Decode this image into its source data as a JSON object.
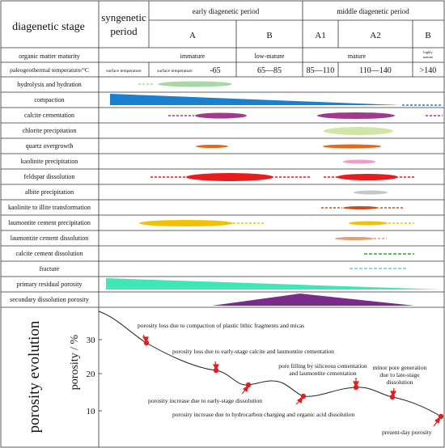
{
  "header": {
    "stage_label": "diagenetic stage",
    "syngenetic_line1": "syngenetic",
    "syngenetic_line2": "period",
    "early_period": "early diagenetic period",
    "middle_period": "middle diagenetic period",
    "sub_A": "A",
    "sub_B": "B",
    "sub_A1": "A1",
    "sub_A2": "A2",
    "sub_B2": "B"
  },
  "maturity": {
    "label": "organic matter maturity",
    "immature": "immature",
    "low_mature": "low-mature",
    "mature": "mature",
    "highly_line1": "highly",
    "highly_line2": "mature"
  },
  "temperature": {
    "label": "paleogeothermal temperature/°C",
    "surface1": "surface temperature",
    "surface2": "surface temperature",
    "v1": "-65",
    "v2": "65—85",
    "v3": "85—110",
    "v4": "110—140",
    "v5": ">140"
  },
  "processes": [
    "hydrolysis and hydration",
    "compaction",
    "calcite cementation",
    "chlorite precipitation",
    "quartz overgrowth",
    "kaolinite precipitation",
    "feldspar dissolution",
    "albite precipitation",
    "kaolinite to illite transformation",
    "laumontite cement precipitation",
    "laumontite cement dissolution",
    "calcite cement dissolution",
    "fracture",
    "primary residual porosity",
    "secondary dissolution porosity"
  ],
  "evolution": {
    "title": "porosity evolution",
    "ylabel": "porosity / %",
    "ticks": [
      "30",
      "20",
      "10"
    ],
    "annotations": [
      "porosity loss due to compaction of plastic lithic fragments and micas",
      "porosity loss due to early-stage calcite and laumontite cementation",
      "pore filling  by siliceous cementation",
      "and laumontite cementation",
      "minor pore generation",
      "due to late-stage",
      "dissolution",
      "porosity increase due to early-stage dissolution",
      "porosity increase due to hydrocarbon charging and organic acid dissolution",
      "present-day porosity"
    ]
  },
  "colors": {
    "grid": "#333333",
    "compaction": "#1a7fcf",
    "hydrolysis": "#a8d8a8",
    "calcite": "#a03a8a",
    "chlorite": "#cfe6a6",
    "quartz": "#e8651a",
    "kaolinite": "#f59ac8",
    "feldspar": "#e81c1c",
    "albite": "#c8c8c8",
    "illite": "#c8501e",
    "laumontite": "#f2c200",
    "laumontite_dissolution": "#e89a70",
    "calcite_dissolution": "#2ca02c",
    "fracture": "#66c7e8",
    "primary_porosity": "#3fe6b8",
    "secondary_porosity": "#7a2a8a",
    "red_point": "#e02020"
  }
}
